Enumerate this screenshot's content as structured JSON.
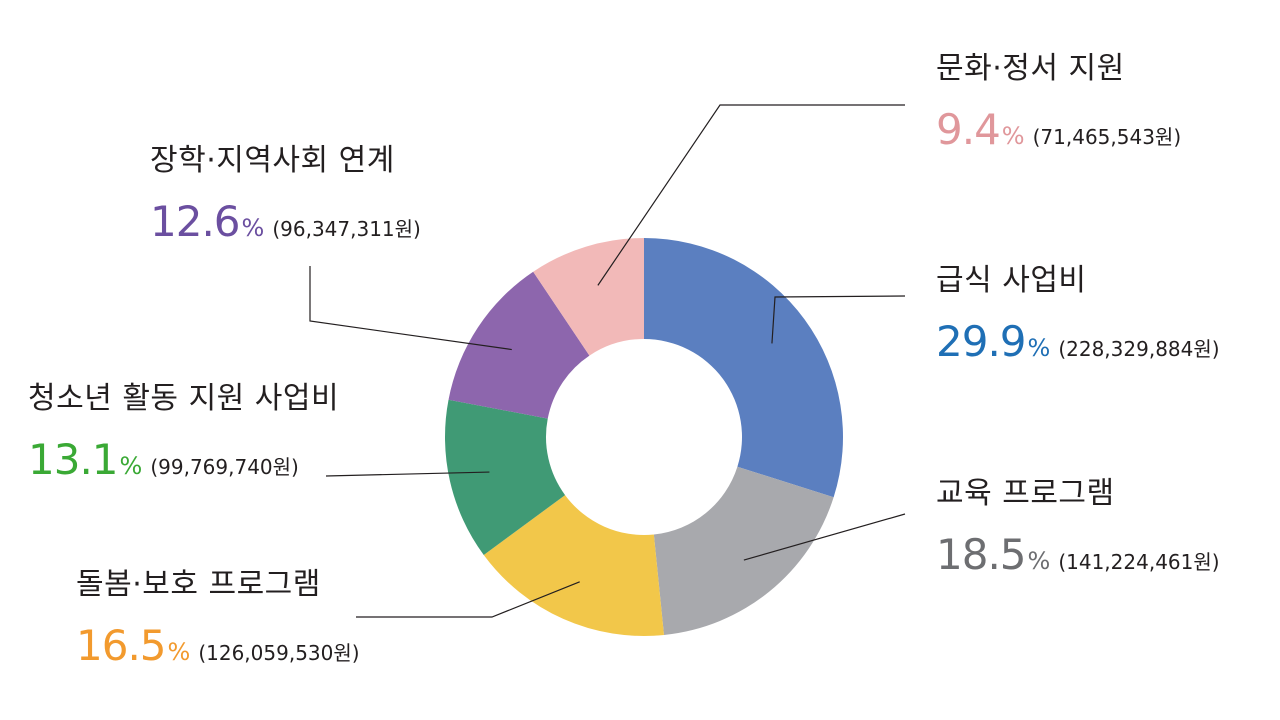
{
  "chart_data": {
    "type": "pie",
    "donut": true,
    "start_angle_deg": 0,
    "direction": "clockwise",
    "segments": [
      {
        "key": "meal",
        "name": "급식 사업비",
        "percent": 29.9,
        "pct_text": "29.9",
        "unit": "%",
        "amount": "(228,329,884원)",
        "color": "#5b7fc0",
        "text_color": "#1f6fb5"
      },
      {
        "key": "edu",
        "name": "교육 프로그램",
        "percent": 18.5,
        "pct_text": "18.5",
        "unit": "%",
        "amount": "(141,224,461원)",
        "color": "#a8a9ad",
        "text_color": "#6d6e71"
      },
      {
        "key": "care",
        "name": "돌봄·보호 프로그램",
        "percent": 16.5,
        "pct_text": "16.5",
        "unit": "%",
        "amount": "(126,059,530원)",
        "color": "#f2c74a",
        "text_color": "#f29a2e"
      },
      {
        "key": "youth",
        "name": "청소년 활동 지원 사업비",
        "percent": 13.1,
        "pct_text": "13.1",
        "unit": "%",
        "amount": "(99,769,740원)",
        "color": "#409a75",
        "text_color": "#3aa935"
      },
      {
        "key": "scholar",
        "name": "장학·지역사회 연계",
        "percent": 12.6,
        "pct_text": "12.6",
        "unit": "%",
        "amount": "(96,347,311원)",
        "color": "#8d66ad",
        "text_color": "#6b4fa0"
      },
      {
        "key": "culture",
        "name": "문화·정서 지원",
        "percent": 9.4,
        "pct_text": "9.4",
        "unit": "%",
        "amount": "(71,465,543원)",
        "color": "#f2b9b8",
        "text_color": "#e0979b"
      }
    ]
  }
}
